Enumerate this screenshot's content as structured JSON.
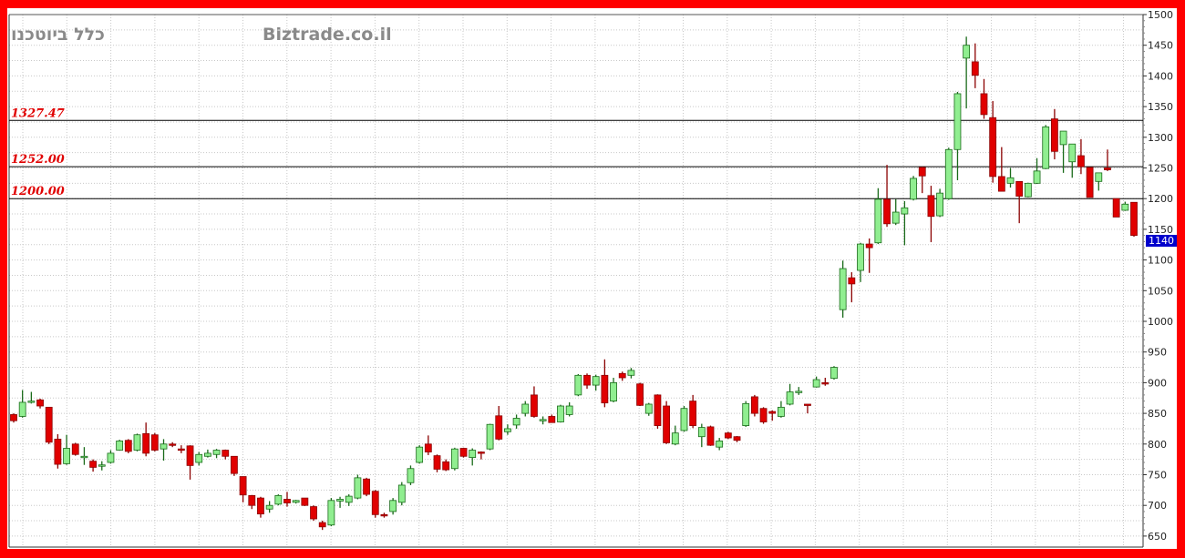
{
  "header": {
    "instrument_name": "כלל ביוטכנו",
    "watermark": "Biztrade.co.il"
  },
  "colors": {
    "up": "#90ee90",
    "down": "#e00000",
    "border": "#ff0000",
    "level_label": "#e00000",
    "last_price_bg": "#0000cc"
  },
  "last_price": {
    "label": "1140"
  },
  "chart_data": {
    "type": "candlestick",
    "title": "",
    "ylim": [
      640,
      1500
    ],
    "yticks": [
      650,
      700,
      750,
      800,
      850,
      900,
      950,
      1000,
      1050,
      1100,
      1150,
      1200,
      1250,
      1300,
      1350,
      1400,
      1450,
      1500
    ],
    "grid": true,
    "y_axis_position": "right",
    "levels": [
      {
        "value": 1327.47,
        "label": "1327.47"
      },
      {
        "value": 1252.0,
        "label": "1252.00"
      },
      {
        "value": 1200.0,
        "label": "1200.00"
      }
    ],
    "ohlc": [
      [
        848,
        850,
        835,
        838
      ],
      [
        845,
        888,
        843,
        868
      ],
      [
        868,
        885,
        866,
        870
      ],
      [
        872,
        874,
        858,
        862
      ],
      [
        860,
        860,
        800,
        803
      ],
      [
        808,
        816,
        760,
        767
      ],
      [
        768,
        815,
        766,
        793
      ],
      [
        800,
        802,
        781,
        783
      ],
      [
        780,
        795,
        766,
        780
      ],
      [
        772,
        775,
        755,
        762
      ],
      [
        764,
        772,
        757,
        766
      ],
      [
        770,
        790,
        768,
        785
      ],
      [
        790,
        807,
        789,
        805
      ],
      [
        806,
        808,
        785,
        788
      ],
      [
        790,
        817,
        788,
        815
      ],
      [
        817,
        835,
        780,
        785
      ],
      [
        815,
        818,
        788,
        790
      ],
      [
        792,
        808,
        773,
        800
      ],
      [
        800,
        803,
        795,
        798
      ],
      [
        792,
        798,
        785,
        790
      ],
      [
        797,
        798,
        742,
        765
      ],
      [
        770,
        787,
        765,
        783
      ],
      [
        780,
        791,
        778,
        785
      ],
      [
        783,
        792,
        777,
        790
      ],
      [
        790,
        791,
        775,
        780
      ],
      [
        780,
        780,
        748,
        752
      ],
      [
        747,
        747,
        705,
        717
      ],
      [
        716,
        717,
        694,
        700
      ],
      [
        712,
        714,
        680,
        686
      ],
      [
        694,
        707,
        688,
        700
      ],
      [
        702,
        718,
        700,
        716
      ],
      [
        710,
        722,
        698,
        704
      ],
      [
        705,
        709,
        703,
        708
      ],
      [
        712,
        712,
        699,
        700
      ],
      [
        698,
        700,
        675,
        678
      ],
      [
        672,
        675,
        660,
        665
      ],
      [
        668,
        712,
        666,
        708
      ],
      [
        707,
        714,
        696,
        710
      ],
      [
        705,
        718,
        699,
        715
      ],
      [
        712,
        750,
        710,
        745
      ],
      [
        743,
        745,
        715,
        718
      ],
      [
        723,
        725,
        680,
        685
      ],
      [
        685,
        688,
        680,
        683
      ],
      [
        690,
        712,
        685,
        708
      ],
      [
        705,
        738,
        700,
        733
      ],
      [
        737,
        765,
        733,
        760
      ],
      [
        770,
        798,
        768,
        795
      ],
      [
        800,
        814,
        782,
        787
      ],
      [
        781,
        783,
        754,
        759
      ],
      [
        771,
        775,
        756,
        758
      ],
      [
        760,
        794,
        757,
        792
      ],
      [
        793,
        794,
        778,
        780
      ],
      [
        778,
        793,
        765,
        790
      ],
      [
        787,
        788,
        775,
        785
      ],
      [
        792,
        833,
        790,
        832
      ],
      [
        846,
        862,
        806,
        808
      ],
      [
        820,
        832,
        815,
        825
      ],
      [
        831,
        848,
        825,
        842
      ],
      [
        850,
        870,
        845,
        865
      ],
      [
        880,
        894,
        843,
        845
      ],
      [
        840,
        845,
        832,
        840
      ],
      [
        845,
        848,
        835,
        835
      ],
      [
        836,
        864,
        835,
        862
      ],
      [
        848,
        868,
        845,
        862
      ],
      [
        880,
        914,
        878,
        912
      ],
      [
        912,
        915,
        890,
        896
      ],
      [
        896,
        913,
        887,
        910
      ],
      [
        912,
        938,
        860,
        867
      ],
      [
        870,
        908,
        868,
        900
      ],
      [
        915,
        918,
        903,
        908
      ],
      [
        912,
        924,
        907,
        920
      ],
      [
        898,
        900,
        862,
        863
      ],
      [
        850,
        867,
        846,
        865
      ],
      [
        880,
        881,
        825,
        830
      ],
      [
        862,
        870,
        800,
        802
      ],
      [
        800,
        830,
        798,
        818
      ],
      [
        822,
        862,
        820,
        858
      ],
      [
        870,
        880,
        826,
        830
      ],
      [
        812,
        833,
        795,
        827
      ],
      [
        828,
        830,
        797,
        798
      ],
      [
        795,
        810,
        790,
        805
      ],
      [
        818,
        820,
        808,
        810
      ],
      [
        812,
        813,
        803,
        806
      ],
      [
        830,
        870,
        828,
        866
      ],
      [
        877,
        880,
        845,
        850
      ],
      [
        858,
        860,
        833,
        836
      ],
      [
        853,
        855,
        838,
        850
      ],
      [
        845,
        870,
        843,
        860
      ],
      [
        865,
        898,
        863,
        885
      ],
      [
        886,
        893,
        880,
        886
      ],
      [
        865,
        865,
        850,
        863
      ],
      [
        893,
        910,
        892,
        905
      ],
      [
        900,
        908,
        895,
        898
      ],
      [
        907,
        927,
        905,
        925
      ],
      [
        1019,
        1099,
        1006,
        1086
      ],
      [
        1071,
        1080,
        1031,
        1061
      ],
      [
        1083,
        1128,
        1064,
        1126
      ],
      [
        1126,
        1135,
        1079,
        1120
      ],
      [
        1128,
        1217,
        1126,
        1199
      ],
      [
        1199,
        1255,
        1154,
        1159
      ],
      [
        1160,
        1199,
        1157,
        1178
      ],
      [
        1175,
        1196,
        1124,
        1185
      ],
      [
        1199,
        1237,
        1197,
        1233
      ],
      [
        1251,
        1252,
        1209,
        1237
      ],
      [
        1205,
        1221,
        1129,
        1171
      ],
      [
        1172,
        1216,
        1170,
        1209
      ],
      [
        1200,
        1283,
        1198,
        1280
      ],
      [
        1280,
        1374,
        1230,
        1371
      ],
      [
        1429,
        1464,
        1347,
        1450
      ],
      [
        1423,
        1453,
        1380,
        1401
      ],
      [
        1371,
        1395,
        1330,
        1337
      ],
      [
        1332,
        1359,
        1226,
        1236
      ],
      [
        1236,
        1284,
        1212,
        1212
      ],
      [
        1225,
        1250,
        1218,
        1234
      ],
      [
        1228,
        1228,
        1160,
        1204
      ],
      [
        1203,
        1226,
        1202,
        1225
      ],
      [
        1225,
        1266,
        1224,
        1245
      ],
      [
        1249,
        1320,
        1248,
        1317
      ],
      [
        1330,
        1346,
        1264,
        1277
      ],
      [
        1288,
        1310,
        1242,
        1310
      ],
      [
        1260,
        1289,
        1234,
        1289
      ],
      [
        1270,
        1297,
        1240,
        1252
      ],
      [
        1251,
        1251,
        1202,
        1202
      ],
      [
        1228,
        1242,
        1213,
        1242
      ],
      [
        1250,
        1280,
        1245,
        1247
      ],
      [
        1200,
        1200,
        1170,
        1170
      ],
      [
        1181,
        1195,
        1180,
        1191
      ],
      [
        1194,
        1194,
        1138,
        1140
      ]
    ]
  }
}
